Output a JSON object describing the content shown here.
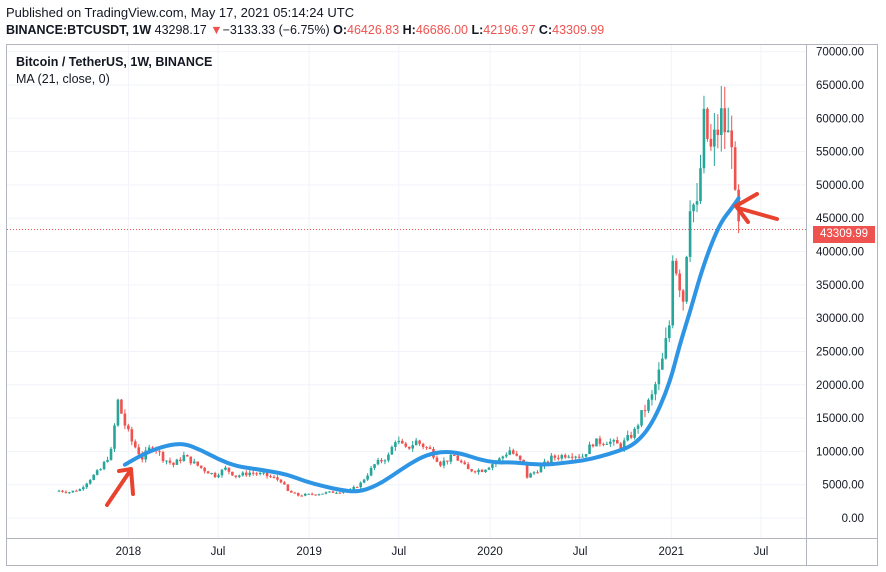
{
  "header": {
    "published": "Published on TradingView.com, May 17, 2021 05:14:24 UTC",
    "symbol": "BINANCE:BTCUSDT, 1W",
    "last": "43298.17",
    "change_arrow": "▼",
    "change": "−3133.33 (−6.75%)",
    "open_label": "O:",
    "open": "46426.83",
    "high_label": "H:",
    "high": "46686.00",
    "low_label": "L:",
    "low": "42196.97",
    "close_label": "C:",
    "close": "43309.99"
  },
  "legend": {
    "title": "Bitcoin / TetherUS, 1W, BINANCE",
    "ma": "MA (21, close, 0)"
  },
  "price_tag": "43309.99",
  "colors": {
    "up": "#26a69a",
    "down": "#ef5350",
    "ma": "#2d95e3",
    "annotation": "#e8432f",
    "grid": "#f0f3fa",
    "price_line": "#ef5350"
  },
  "icons": {
    "annotation_arrows": "arrow-icon"
  },
  "chart_data": {
    "type": "candlestick",
    "title": "Bitcoin / TetherUS, 1W, BINANCE",
    "x_ticks": [
      "2018",
      "Jul",
      "2019",
      "Jul",
      "2020",
      "Jul",
      "2021",
      "Jul"
    ],
    "y_ticks": [
      "0.00",
      "5000.00",
      "10000.00",
      "15000.00",
      "20000.00",
      "25000.00",
      "30000.00",
      "35000.00",
      "40000.00",
      "45000.00",
      "50000.00",
      "55000.00",
      "60000.00",
      "65000.00",
      "70000.00"
    ],
    "ylim": [
      -3000,
      71000
    ],
    "last_price": 43309.99,
    "x_range": [
      "2017-05-01",
      "2021-09-30"
    ],
    "close_series": {
      "dates": [
        "2017-08-14",
        "2017-09-04",
        "2017-09-25",
        "2017-10-16",
        "2017-11-06",
        "2017-11-27",
        "2017-12-11",
        "2017-12-25",
        "2018-01-08",
        "2018-01-29",
        "2018-02-19",
        "2018-03-12",
        "2018-04-02",
        "2018-04-23",
        "2018-05-14",
        "2018-06-04",
        "2018-06-25",
        "2018-07-16",
        "2018-08-06",
        "2018-09-03",
        "2018-10-01",
        "2018-11-05",
        "2018-11-19",
        "2018-12-10",
        "2019-01-14",
        "2019-02-18",
        "2019-03-25",
        "2019-04-15",
        "2019-05-13",
        "2019-06-10",
        "2019-06-24",
        "2019-07-15",
        "2019-08-05",
        "2019-09-02",
        "2019-09-23",
        "2019-10-21",
        "2019-11-18",
        "2019-12-16",
        "2020-01-20",
        "2020-02-10",
        "2020-03-09",
        "2020-03-16",
        "2020-04-06",
        "2020-05-04",
        "2020-06-08",
        "2020-07-06",
        "2020-07-27",
        "2020-08-24",
        "2020-09-21",
        "2020-10-19",
        "2020-11-02",
        "2020-11-23",
        "2020-12-14",
        "2020-12-28",
        "2021-01-04",
        "2021-01-25",
        "2021-02-08",
        "2021-02-22",
        "2021-03-08",
        "2021-03-22",
        "2021-04-12",
        "2021-04-26",
        "2021-05-03",
        "2021-05-10",
        "2021-05-17"
      ],
      "values": [
        4100,
        3900,
        4300,
        5900,
        7300,
        10000,
        17500,
        14000,
        11500,
        9000,
        11000,
        9000,
        8000,
        9300,
        8200,
        7200,
        6400,
        7400,
        6300,
        6800,
        6500,
        5600,
        4000,
        3400,
        3600,
        3900,
        4100,
        5200,
        8000,
        9300,
        11800,
        10300,
        11500,
        10200,
        8200,
        9300,
        7200,
        7200,
        8800,
        10200,
        8000,
        6200,
        7200,
        9000,
        9600,
        9300,
        11300,
        11600,
        10800,
        13000,
        15500,
        18200,
        23500,
        29000,
        40000,
        33000,
        48000,
        46000,
        59000,
        55000,
        60000,
        57000,
        58000,
        47000,
        43300
      ]
    },
    "ma_series": {
      "name": "MA (21, close, 0)",
      "dates": [
        "2017-12-25",
        "2018-02-05",
        "2018-03-19",
        "2018-04-23",
        "2018-05-28",
        "2018-07-02",
        "2018-08-06",
        "2018-09-10",
        "2018-10-15",
        "2018-11-19",
        "2018-12-24",
        "2019-01-28",
        "2019-03-04",
        "2019-04-08",
        "2019-05-13",
        "2019-06-17",
        "2019-07-22",
        "2019-08-26",
        "2019-09-30",
        "2019-11-04",
        "2019-12-09",
        "2020-01-13",
        "2020-02-17",
        "2020-03-23",
        "2020-04-27",
        "2020-06-01",
        "2020-07-06",
        "2020-08-10",
        "2020-09-14",
        "2020-10-19",
        "2020-11-23",
        "2020-12-28",
        "2021-01-18",
        "2021-02-08",
        "2021-03-01",
        "2021-03-22",
        "2021-04-12",
        "2021-05-03",
        "2021-05-17"
      ],
      "values": [
        8000,
        9800,
        10900,
        11200,
        10200,
        8800,
        7800,
        7400,
        7000,
        6500,
        5500,
        4800,
        4200,
        3900,
        4700,
        6300,
        8100,
        9500,
        10000,
        9700,
        8800,
        8300,
        8400,
        8100,
        8000,
        8300,
        8600,
        9200,
        10000,
        11000,
        14000,
        20000,
        26000,
        31000,
        36500,
        41000,
        44500,
        46500,
        48000
      ]
    }
  }
}
